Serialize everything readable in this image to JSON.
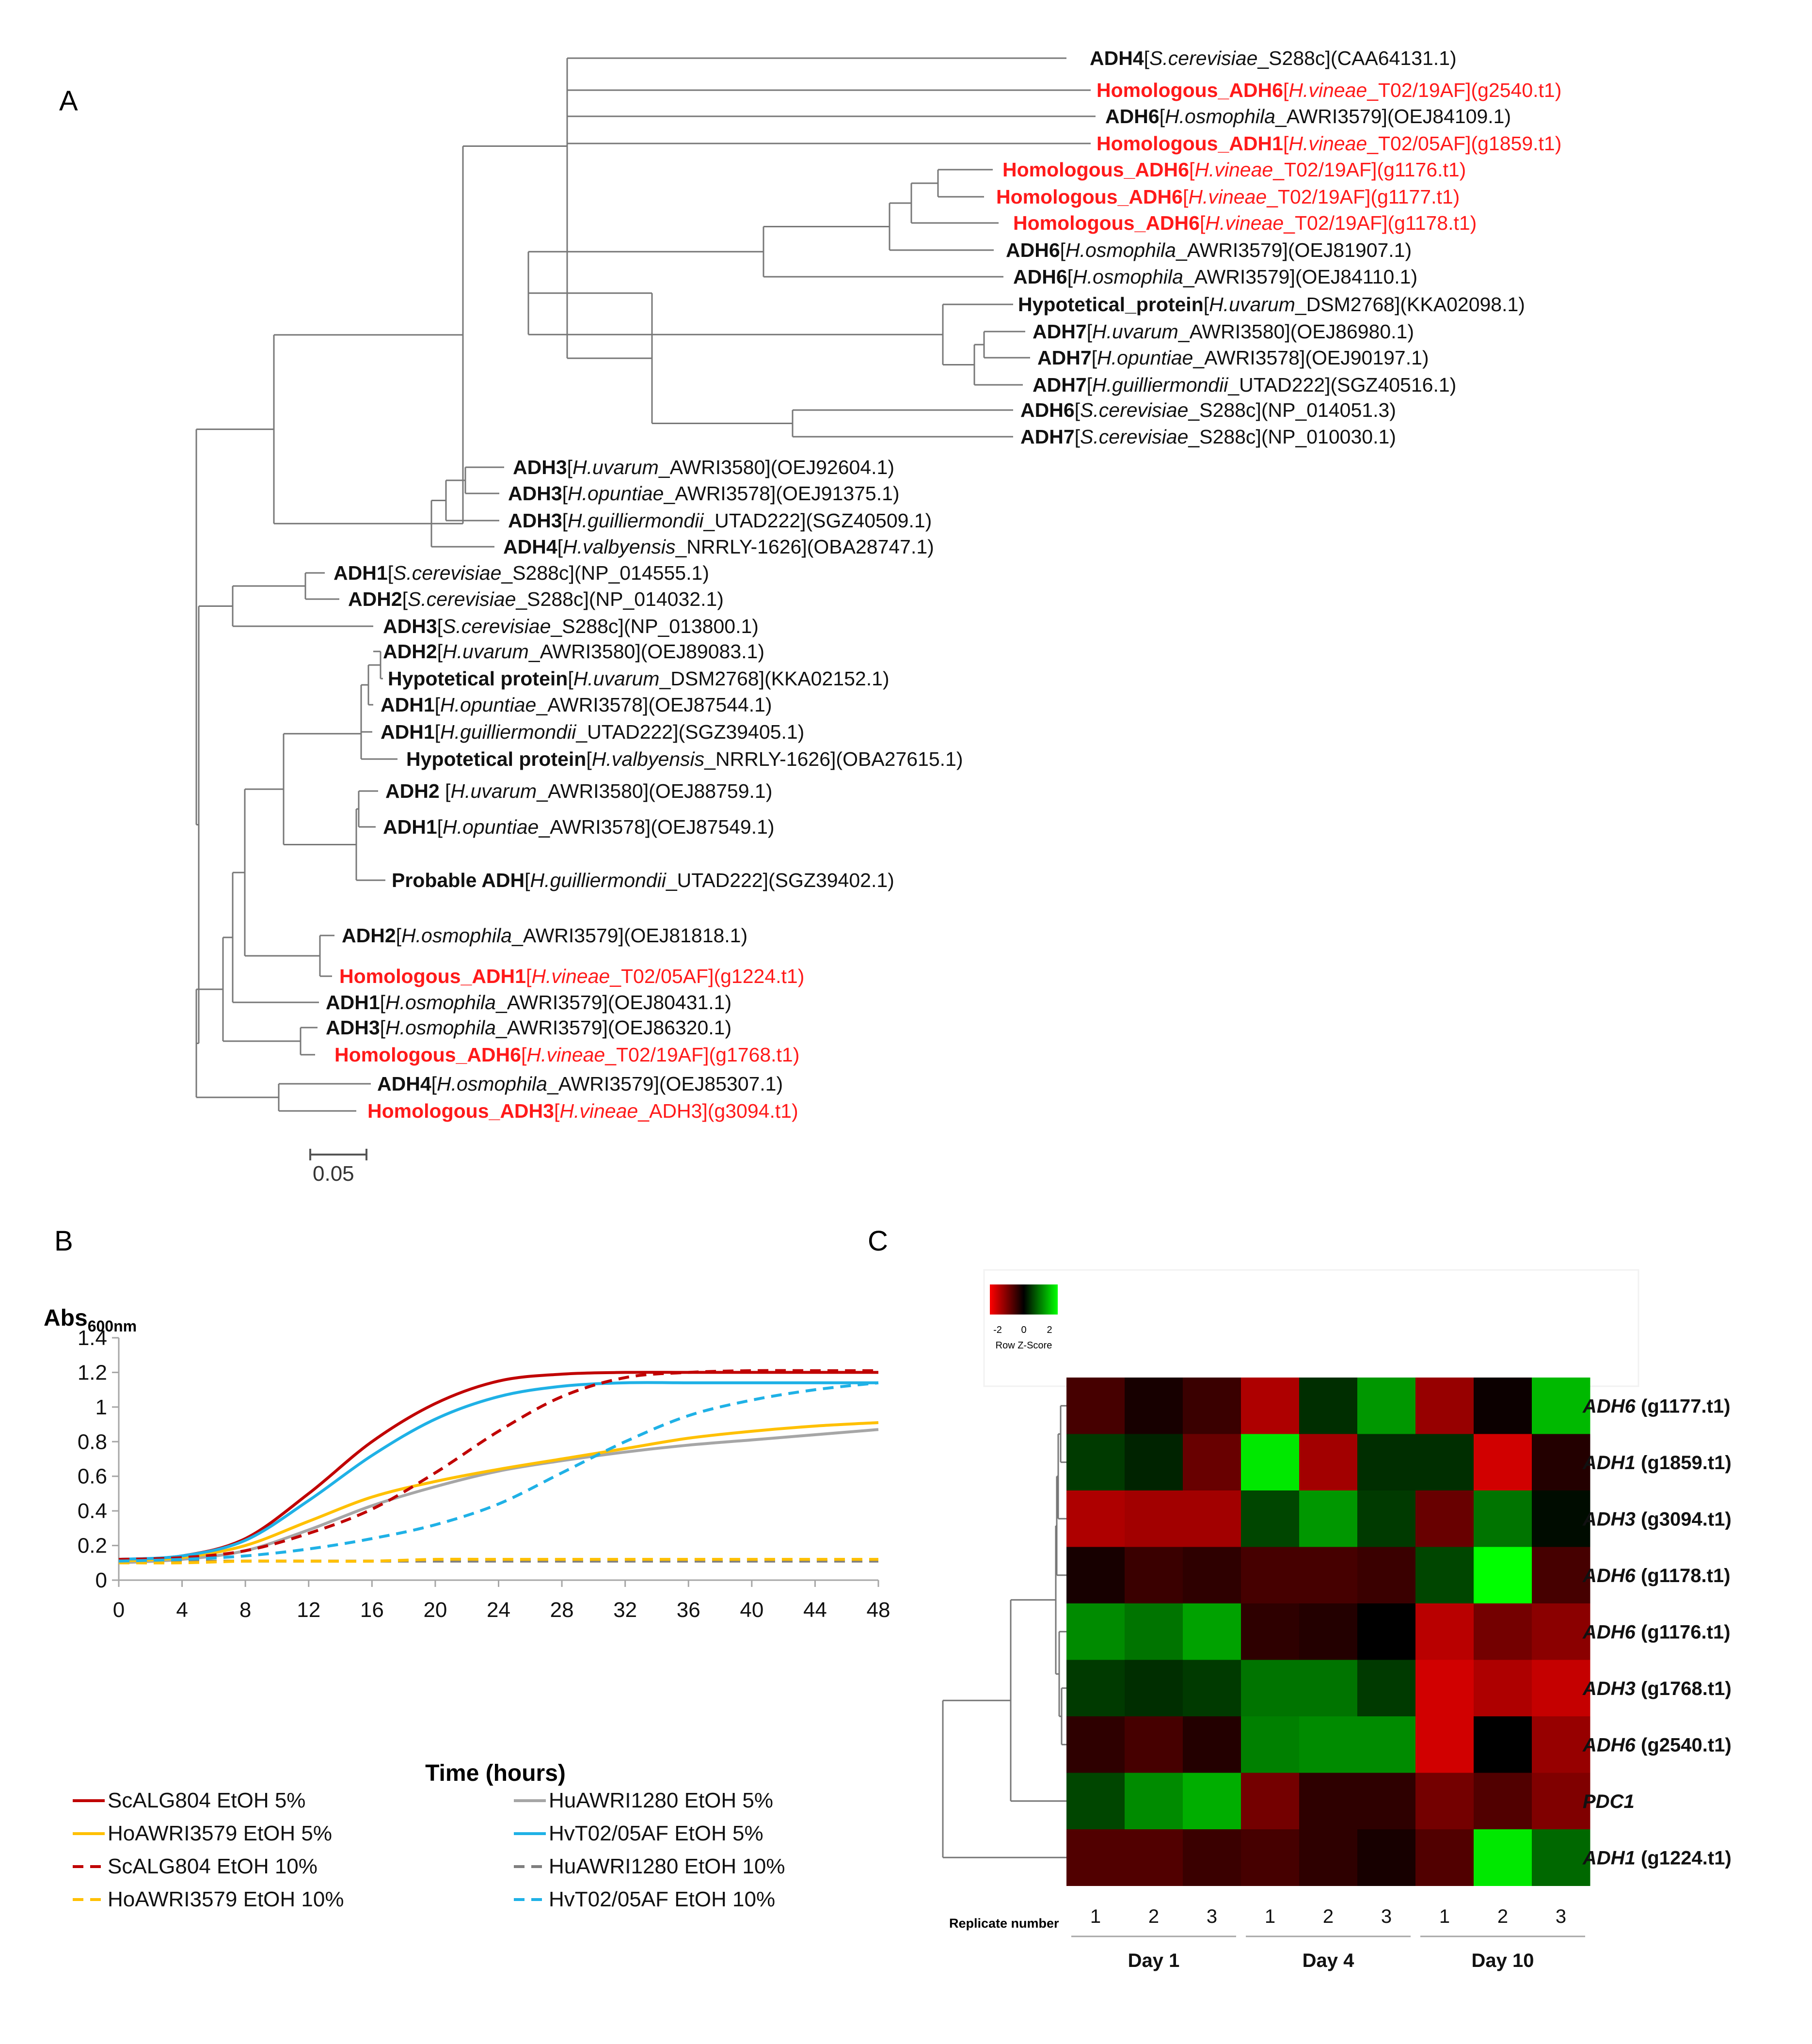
{
  "panel_labels": {
    "a": "A",
    "b": "B",
    "c": "C"
  },
  "tree": {
    "scale_label": "0.05",
    "red_color": "#ff1a1a",
    "leaves": [
      {
        "gene": "ADH4",
        "species": "S.cerevisiae",
        "strain": "_S288c",
        "acc": "(CAA64131.1)",
        "red": false
      },
      {
        "gene": "Homologous_ADH6",
        "species": "H.vineae",
        "strain": "_T02/19AF",
        "acc": "(g2540.t1)",
        "red": true
      },
      {
        "gene": "ADH6",
        "species": "H.osmophila",
        "strain": "_AWRI3579",
        "acc": "(OEJ84109.1)",
        "red": false
      },
      {
        "gene": "Homologous_ADH1",
        "species": "H.vineae",
        "strain": "_T02/05AF",
        "acc": "(g1859.t1)",
        "red": true
      },
      {
        "gene": "Homologous_ADH6",
        "species": "H.vineae",
        "strain": "_T02/19AF",
        "acc": "(g1176.t1)",
        "red": true
      },
      {
        "gene": "Homologous_ADH6",
        "species": "H.vineae",
        "strain": "_T02/19AF",
        "acc": "(g1177.t1)",
        "red": true
      },
      {
        "gene": "Homologous_ADH6",
        "species": "H.vineae",
        "strain": "_T02/19AF",
        "acc": "(g1178.t1)",
        "red": true
      },
      {
        "gene": "ADH6",
        "species": "H.osmophila",
        "strain": "_AWRI3579",
        "acc": "(OEJ81907.1)",
        "red": false
      },
      {
        "gene": "ADH6",
        "species": "H.osmophila",
        "strain": "_AWRI3579",
        "acc": "(OEJ84110.1)",
        "red": false
      },
      {
        "gene": "Hypotetical_protein",
        "species": "H.uvarum",
        "strain": "_DSM2768",
        "acc": "(KKA02098.1)",
        "red": false
      },
      {
        "gene": "ADH7",
        "species": "H.uvarum",
        "strain": "_AWRI3580",
        "acc": "(OEJ86980.1)",
        "red": false
      },
      {
        "gene": "ADH7",
        "species": "H.opuntiae",
        "strain": "_AWRI3578",
        "acc": "(OEJ90197.1)",
        "red": false
      },
      {
        "gene": "ADH7",
        "species": "H.guilliermondii",
        "strain": "_UTAD222",
        "acc": "(SGZ40516.1)",
        "red": false
      },
      {
        "gene": "ADH6",
        "species": "S.cerevisiae",
        "strain": "_S288c",
        "acc": "(NP_014051.3)",
        "red": false
      },
      {
        "gene": "ADH7",
        "species": "S.cerevisiae",
        "strain": "_S288c",
        "acc": "(NP_010030.1)",
        "red": false
      },
      {
        "gene": "ADH3",
        "species": "H.uvarum",
        "strain": "_AWRI3580",
        "acc": "(OEJ92604.1)",
        "red": false
      },
      {
        "gene": "ADH3",
        "species": "H.opuntiae",
        "strain": "_AWRI3578",
        "acc": "(OEJ91375.1)",
        "red": false
      },
      {
        "gene": "ADH3",
        "species": "H.guilliermondii",
        "strain": "_UTAD222",
        "acc": "(SGZ40509.1)",
        "red": false
      },
      {
        "gene": "ADH4",
        "species": "H.valbyensis",
        "strain": "_NRRLY-1626",
        "acc": "(OBA28747.1)",
        "red": false
      },
      {
        "gene": "ADH1",
        "species": "S.cerevisiae",
        "strain": "_S288c",
        "acc": "(NP_014555.1)",
        "red": false
      },
      {
        "gene": "ADH2",
        "species": "S.cerevisiae",
        "strain": "_S288c",
        "acc": "(NP_014032.1)",
        "red": false
      },
      {
        "gene": "ADH3",
        "species": "S.cerevisiae",
        "strain": "_S288c",
        "acc": "(NP_013800.1)",
        "red": false
      },
      {
        "gene": "ADH2",
        "species": "H.uvarum",
        "strain": "_AWRI3580",
        "acc": "(OEJ89083.1)",
        "red": false
      },
      {
        "gene": "Hypotetical protein",
        "species": "H.uvarum",
        "strain": "_DSM2768",
        "acc": "(KKA02152.1)",
        "red": false
      },
      {
        "gene": "ADH1",
        "species": "H.opuntiae",
        "strain": "_AWRI3578",
        "acc": "(OEJ87544.1)",
        "red": false
      },
      {
        "gene": "ADH1",
        "species": "H.guilliermondii",
        "strain": "_UTAD222",
        "acc": "(SGZ39405.1)",
        "red": false
      },
      {
        "gene": "Hypotetical protein",
        "species": "H.valbyensis",
        "strain": "_NRRLY-1626",
        "acc": "(OBA27615.1)",
        "red": false
      },
      {
        "gene": "ADH2 ",
        "species": "H.uvarum",
        "strain": "_AWRI3580",
        "acc": "(OEJ88759.1)",
        "red": false
      },
      {
        "gene": "ADH1",
        "species": "H.opuntiae",
        "strain": "_AWRI3578",
        "acc": "(OEJ87549.1)",
        "red": false
      },
      {
        "gene": "Probable ADH",
        "species": "H.guilliermondii",
        "strain": "_UTAD222",
        "acc": "(SGZ39402.1)",
        "red": false
      },
      {
        "gene": "ADH2",
        "species": "H.osmophila",
        "strain": "_AWRI3579",
        "acc": "(OEJ81818.1)",
        "red": false
      },
      {
        "gene": "Homologous_ADH1",
        "species": "H.vineae",
        "strain": "_T02/05AF",
        "acc": "(g1224.t1)",
        "red": true
      },
      {
        "gene": "ADH1",
        "species": "H.osmophila",
        "strain": "_AWRI3579",
        "acc": "(OEJ80431.1)",
        "red": false
      },
      {
        "gene": "ADH3",
        "species": "H.osmophila",
        "strain": "_AWRI3579",
        "acc": "(OEJ86320.1)",
        "red": false
      },
      {
        "gene": "Homologous_ADH6",
        "species": "H.vineae",
        "strain": "_T02/19AF",
        "acc": "(g1768.t1)",
        "red": true
      },
      {
        "gene": "ADH4",
        "species": "H.osmophila",
        "strain": "_AWRI3579",
        "acc": "(OEJ85307.1)",
        "red": false
      },
      {
        "gene": "Homologous_ADH3",
        "species": "H.vineae",
        "strain": "_ADH3",
        "acc": "(g3094.t1)",
        "red": true
      }
    ]
  },
  "growth": {
    "ylabel_main": "Abs",
    "ylabel_sub": "600nm",
    "xlabel": "Time (hours)",
    "legend": [
      "ScALG804 EtOH 5%",
      "HuAWRI1280 EtOH 5%",
      "HoAWRI3579 EtOH 5%",
      "HvT02/05AF EtOH 5%",
      "ScALG804 EtOH 10%",
      "HuAWRI1280 EtOH 10%",
      "HoAWRI3579 EtOH 10%",
      "HvT02/05AF EtOH 10%"
    ]
  },
  "heatmap": {
    "colorkey_ticks": [
      "-2",
      "0",
      "2"
    ],
    "colorkey_label": "Row Z-Score",
    "replicate_label": "Replicate number",
    "replicates": [
      "1",
      "2",
      "3",
      "1",
      "2",
      "3",
      "1",
      "2",
      "3"
    ],
    "groups": [
      "Day 1",
      "Day 4",
      "Day 10"
    ],
    "rows": [
      {
        "gene": "ADH6",
        "id": " (g1177.t1)"
      },
      {
        "gene": "ADH1",
        "id": " (g1859.t1)"
      },
      {
        "gene": "ADH3",
        "id": " (g3094.t1)"
      },
      {
        "gene": "ADH6",
        "id": " (g1178.t1)"
      },
      {
        "gene": "ADH6",
        "id": " (g1176.t1)"
      },
      {
        "gene": "ADH3",
        "id": " (g1768.t1)"
      },
      {
        "gene": "ADH6",
        "id": " (g2540.t1)"
      },
      {
        "gene": "PDC1",
        "id": ""
      },
      {
        "gene": "ADH1",
        "id": " (g1224.t1)"
      }
    ]
  },
  "chart_data": [
    {
      "type": "line",
      "title": "",
      "xlabel": "Time (hours)",
      "ylabel": "Abs600nm",
      "xlim": [
        0,
        48
      ],
      "ylim": [
        0,
        1.4
      ],
      "xticks": [
        0,
        4,
        8,
        12,
        16,
        20,
        24,
        28,
        32,
        36,
        40,
        44,
        48
      ],
      "yticks": [
        0,
        0.2,
        0.4,
        0.6,
        0.8,
        1,
        1.2,
        1.4
      ],
      "legend_position": "bottom",
      "series": [
        {
          "name": "ScALG804 EtOH 5%",
          "color": "#c00000",
          "dash": false,
          "x": [
            0,
            4,
            8,
            12,
            16,
            20,
            24,
            28,
            32,
            36,
            40,
            44,
            48
          ],
          "y": [
            0.12,
            0.14,
            0.24,
            0.5,
            0.8,
            1.02,
            1.15,
            1.19,
            1.2,
            1.2,
            1.2,
            1.2,
            1.2
          ]
        },
        {
          "name": "HuAWRI1280 EtOH 5%",
          "color": "#a6a6a6",
          "dash": false,
          "x": [
            0,
            4,
            8,
            12,
            16,
            20,
            24,
            28,
            32,
            36,
            40,
            44,
            48
          ],
          "y": [
            0.1,
            0.12,
            0.17,
            0.29,
            0.43,
            0.54,
            0.63,
            0.69,
            0.74,
            0.78,
            0.81,
            0.84,
            0.87
          ]
        },
        {
          "name": "HoAWRI3579 EtOH 5%",
          "color": "#ffc000",
          "dash": false,
          "x": [
            0,
            4,
            8,
            12,
            16,
            20,
            24,
            28,
            32,
            36,
            40,
            44,
            48
          ],
          "y": [
            0.11,
            0.13,
            0.2,
            0.34,
            0.48,
            0.57,
            0.64,
            0.7,
            0.76,
            0.82,
            0.86,
            0.89,
            0.91
          ]
        },
        {
          "name": "HvT02/05AF EtOH 5%",
          "color": "#1fb1e6",
          "dash": false,
          "x": [
            0,
            4,
            8,
            12,
            16,
            20,
            24,
            28,
            32,
            36,
            40,
            44,
            48
          ],
          "y": [
            0.12,
            0.14,
            0.23,
            0.46,
            0.72,
            0.93,
            1.06,
            1.12,
            1.14,
            1.14,
            1.14,
            1.14,
            1.14
          ]
        },
        {
          "name": "ScALG804 EtOH 10%",
          "color": "#c00000",
          "dash": true,
          "x": [
            0,
            4,
            8,
            12,
            16,
            20,
            24,
            28,
            32,
            36,
            40,
            44,
            48
          ],
          "y": [
            0.12,
            0.13,
            0.17,
            0.27,
            0.41,
            0.62,
            0.86,
            1.06,
            1.17,
            1.2,
            1.21,
            1.21,
            1.21
          ]
        },
        {
          "name": "HuAWRI1280 EtOH 10%",
          "color": "#7f7f7f",
          "dash": true,
          "x": [
            0,
            4,
            8,
            12,
            16,
            20,
            24,
            28,
            32,
            36,
            40,
            44,
            48
          ],
          "y": [
            0.11,
            0.11,
            0.11,
            0.11,
            0.11,
            0.11,
            0.11,
            0.11,
            0.11,
            0.11,
            0.11,
            0.11,
            0.11
          ]
        },
        {
          "name": "HoAWRI3579 EtOH 10%",
          "color": "#ffc000",
          "dash": true,
          "x": [
            0,
            4,
            8,
            12,
            16,
            20,
            24,
            28,
            32,
            36,
            40,
            44,
            48
          ],
          "y": [
            0.1,
            0.1,
            0.11,
            0.11,
            0.11,
            0.12,
            0.12,
            0.12,
            0.12,
            0.12,
            0.12,
            0.12,
            0.12
          ]
        },
        {
          "name": "HvT02/05AF EtOH 10%",
          "color": "#1fb1e6",
          "dash": true,
          "x": [
            0,
            4,
            8,
            12,
            16,
            20,
            24,
            28,
            32,
            36,
            40,
            44,
            48
          ],
          "y": [
            0.11,
            0.12,
            0.14,
            0.18,
            0.24,
            0.32,
            0.44,
            0.62,
            0.8,
            0.95,
            1.04,
            1.1,
            1.14
          ]
        }
      ]
    },
    {
      "type": "heatmap",
      "title": "",
      "colorbar_label": "Row Z-Score",
      "colorbar_range": [
        -2,
        2
      ],
      "columns": [
        "Day 1 rep 1",
        "Day 1 rep 2",
        "Day 1 rep 3",
        "Day 4 rep 1",
        "Day 4 rep 2",
        "Day 4 rep 3",
        "Day 10 rep 1",
        "Day 10 rep 2",
        "Day 10 rep 3"
      ],
      "rows": [
        "ADH6 (g1177.t1)",
        "ADH1 (g1859.t1)",
        "ADH3 (g3094.t1)",
        "ADH6 (g1178.t1)",
        "ADH6 (g1176.t1)",
        "ADH3 (g1768.t1)",
        "ADH6 (g2540.t1)",
        "PDC1",
        "ADH1 (g1224.t1)"
      ],
      "values": [
        [
          -0.6,
          -0.2,
          -0.5,
          -1.5,
          0.4,
          1.3,
          -1.3,
          -0.1,
          1.6
        ],
        [
          0.5,
          0.3,
          -0.9,
          2.0,
          -1.4,
          0.4,
          0.4,
          -1.8,
          -0.3
        ],
        [
          -1.5,
          -1.4,
          -1.4,
          0.6,
          1.3,
          0.5,
          -0.9,
          1.0,
          0.1
        ],
        [
          -0.2,
          -0.5,
          -0.4,
          -0.6,
          -0.6,
          -0.5,
          0.6,
          2.2,
          -0.6
        ],
        [
          1.2,
          1.0,
          1.4,
          -0.4,
          -0.3,
          0.0,
          -1.6,
          -1.0,
          -1.2
        ],
        [
          0.5,
          0.4,
          0.5,
          1.0,
          1.0,
          0.5,
          -1.8,
          -1.5,
          -1.7
        ],
        [
          -0.4,
          -0.6,
          -0.3,
          1.1,
          1.2,
          1.2,
          -1.8,
          0.0,
          -1.3
        ],
        [
          0.6,
          1.2,
          1.5,
          -1.0,
          -0.4,
          -0.4,
          -1.0,
          -0.7,
          -1.1
        ],
        [
          -0.7,
          -0.7,
          -0.5,
          -0.6,
          -0.4,
          -0.2,
          -0.7,
          2.0,
          0.9
        ]
      ]
    }
  ]
}
